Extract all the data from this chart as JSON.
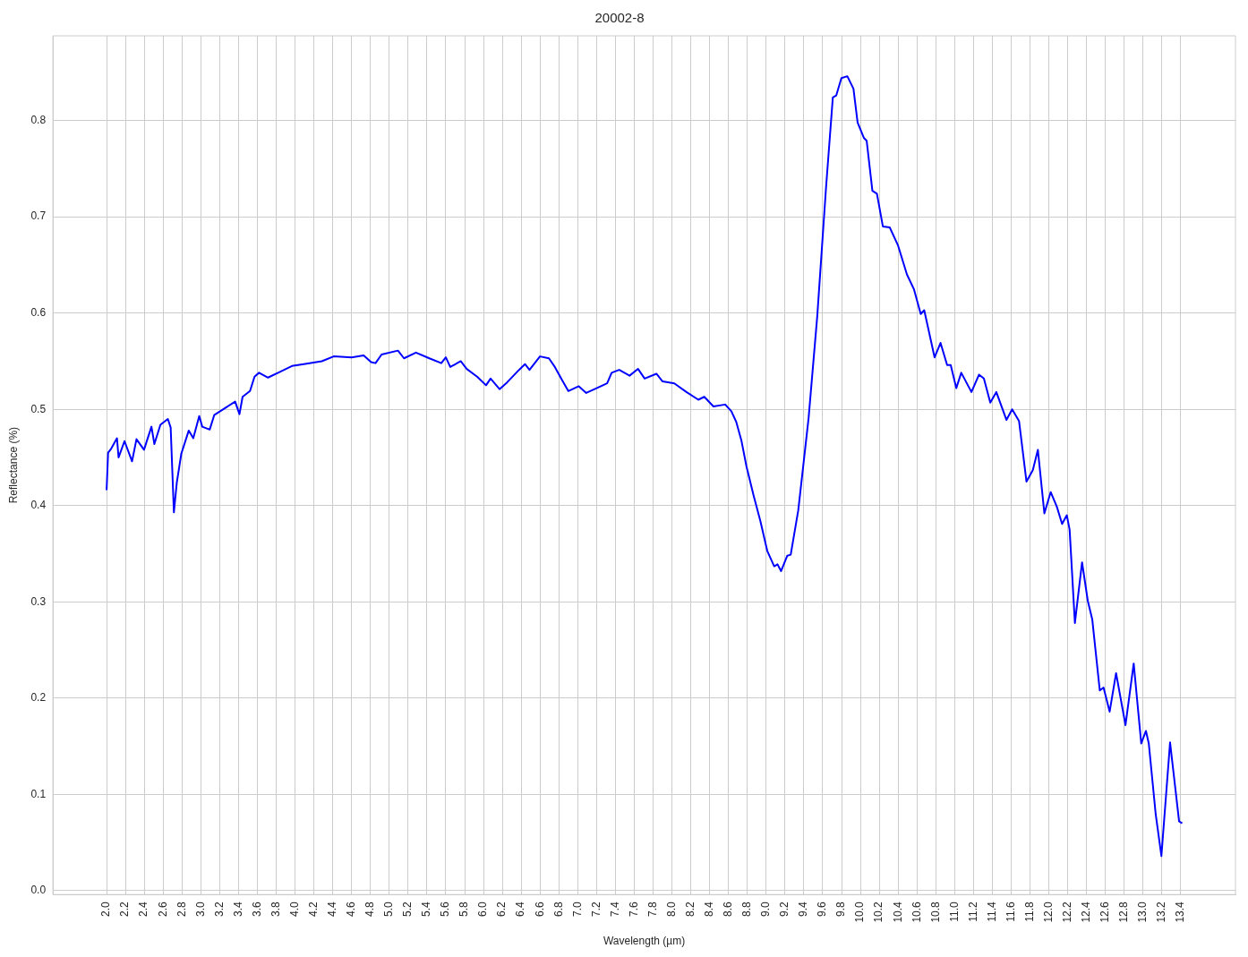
{
  "chart_data": {
    "type": "line",
    "title": "20002-8",
    "xlabel": "Wavelength (µm)",
    "ylabel": "Reflectance (%)",
    "grid": true,
    "marker": "none",
    "line_style": "solid",
    "xlim": [
      1.43,
      13.98
    ],
    "ylim": [
      -0.004,
      0.888
    ],
    "xticks": [
      {
        "value": 2,
        "label": "2.0"
      },
      {
        "value": 2.2,
        "label": "2.2"
      },
      {
        "value": 2.4,
        "label": "2.4"
      },
      {
        "value": 2.6,
        "label": "2.6"
      },
      {
        "value": 2.8,
        "label": "2.8"
      },
      {
        "value": 3,
        "label": "3.0"
      },
      {
        "value": 3.2,
        "label": "3.2"
      },
      {
        "value": 3.4,
        "label": "3.4"
      },
      {
        "value": 3.6,
        "label": "3.6"
      },
      {
        "value": 3.8,
        "label": "3.8"
      },
      {
        "value": 4,
        "label": "4.0"
      },
      {
        "value": 4.2,
        "label": "4.2"
      },
      {
        "value": 4.4,
        "label": "4.4"
      },
      {
        "value": 4.6,
        "label": "4.6"
      },
      {
        "value": 4.8,
        "label": "4.8"
      },
      {
        "value": 5,
        "label": "5.0"
      },
      {
        "value": 5.2,
        "label": "5.2"
      },
      {
        "value": 5.4,
        "label": "5.4"
      },
      {
        "value": 5.6,
        "label": "5.6"
      },
      {
        "value": 5.8,
        "label": "5.8"
      },
      {
        "value": 6,
        "label": "6.0"
      },
      {
        "value": 6.2,
        "label": "6.2"
      },
      {
        "value": 6.4,
        "label": "6.4"
      },
      {
        "value": 6.6,
        "label": "6.6"
      },
      {
        "value": 6.8,
        "label": "6.8"
      },
      {
        "value": 7,
        "label": "7.0"
      },
      {
        "value": 7.2,
        "label": "7.2"
      },
      {
        "value": 7.4,
        "label": "7.4"
      },
      {
        "value": 7.6,
        "label": "7.6"
      },
      {
        "value": 7.8,
        "label": "7.8"
      },
      {
        "value": 8,
        "label": "8.0"
      },
      {
        "value": 8.2,
        "label": "8.2"
      },
      {
        "value": 8.4,
        "label": "8.4"
      },
      {
        "value": 8.6,
        "label": "8.6"
      },
      {
        "value": 8.8,
        "label": "8.8"
      },
      {
        "value": 9,
        "label": "9.0"
      },
      {
        "value": 9.2,
        "label": "9.2"
      },
      {
        "value": 9.4,
        "label": "9.4"
      },
      {
        "value": 9.6,
        "label": "9.6"
      },
      {
        "value": 9.8,
        "label": "9.8"
      },
      {
        "value": 10,
        "label": "10.0"
      },
      {
        "value": 10.2,
        "label": "10.2"
      },
      {
        "value": 10.4,
        "label": "10.4"
      },
      {
        "value": 10.6,
        "label": "10.6"
      },
      {
        "value": 10.8,
        "label": "10.8"
      },
      {
        "value": 11,
        "label": "11.0"
      },
      {
        "value": 11.2,
        "label": "11.2"
      },
      {
        "value": 11.4,
        "label": "11.4"
      },
      {
        "value": 11.6,
        "label": "11.6"
      },
      {
        "value": 11.8,
        "label": "11.8"
      },
      {
        "value": 12,
        "label": "12.0"
      },
      {
        "value": 12.2,
        "label": "12.2"
      },
      {
        "value": 12.4,
        "label": "12.4"
      },
      {
        "value": 12.6,
        "label": "12.6"
      },
      {
        "value": 12.8,
        "label": "12.8"
      },
      {
        "value": 13,
        "label": "13.0"
      },
      {
        "value": 13.2,
        "label": "13.2"
      },
      {
        "value": 13.4,
        "label": "13.4"
      }
    ],
    "yticks": [
      {
        "value": 0,
        "label": "0.0"
      },
      0.1,
      0.2,
      0.3,
      0.4,
      0.5,
      0.6,
      0.7,
      0.8
    ],
    "series": [
      {
        "color": "#0000ff",
        "x": [
          2.0,
          2.016,
          2.048,
          2.11,
          2.127,
          2.19,
          2.27,
          2.317,
          2.397,
          2.476,
          2.507,
          2.571,
          2.65,
          2.68,
          2.714,
          2.745,
          2.793,
          2.872,
          2.92,
          2.983,
          3.015,
          3.094,
          3.142,
          3.268,
          3.364,
          3.41,
          3.443,
          3.522,
          3.57,
          3.618,
          3.713,
          3.84,
          3.967,
          4.093,
          4.284,
          4.41,
          4.6,
          4.728,
          4.807,
          4.854,
          4.918,
          5.092,
          5.156,
          5.283,
          5.425,
          5.552,
          5.6,
          5.647,
          5.758,
          5.822,
          5.932,
          6.027,
          6.075,
          6.17,
          6.25,
          6.377,
          6.44,
          6.488,
          6.599,
          6.694,
          6.757,
          6.836,
          6.9,
          7.011,
          7.09,
          7.2,
          7.312,
          7.36,
          7.44,
          7.55,
          7.64,
          7.71,
          7.835,
          7.9,
          8.025,
          8.153,
          8.28,
          8.343,
          8.44,
          8.565,
          8.63,
          8.682,
          8.736,
          8.79,
          8.865,
          8.938,
          9.011,
          9.085,
          9.12,
          9.158,
          9.224,
          9.26,
          9.34,
          9.45,
          9.542,
          9.634,
          9.707,
          9.743,
          9.798,
          9.861,
          9.926,
          9.97,
          10.036,
          10.066,
          10.127,
          10.175,
          10.238,
          10.311,
          10.4,
          10.494,
          10.567,
          10.64,
          10.677,
          10.787,
          10.85,
          10.92,
          10.958,
          11.017,
          11.07,
          11.178,
          11.258,
          11.31,
          11.378,
          11.442,
          11.55,
          11.61,
          11.683,
          11.762,
          11.83,
          11.883,
          11.952,
          12.019,
          12.084,
          12.14,
          12.19,
          12.22,
          12.276,
          12.352,
          12.413,
          12.46,
          12.54,
          12.58,
          12.645,
          12.713,
          12.813,
          12.9,
          12.98,
          13.03,
          13.06,
          13.134,
          13.194,
          13.286,
          13.382,
          13.415
        ],
        "values": [
          0.416,
          0.455,
          0.459,
          0.47,
          0.45,
          0.467,
          0.446,
          0.469,
          0.458,
          0.482,
          0.464,
          0.484,
          0.49,
          0.481,
          0.393,
          0.424,
          0.454,
          0.478,
          0.47,
          0.493,
          0.482,
          0.479,
          0.494,
          0.502,
          0.508,
          0.495,
          0.513,
          0.519,
          0.534,
          0.538,
          0.533,
          0.539,
          0.545,
          0.547,
          0.55,
          0.555,
          0.554,
          0.556,
          0.549,
          0.548,
          0.557,
          0.561,
          0.553,
          0.559,
          0.553,
          0.548,
          0.554,
          0.544,
          0.55,
          0.542,
          0.534,
          0.525,
          0.532,
          0.521,
          0.528,
          0.541,
          0.547,
          0.541,
          0.555,
          0.553,
          0.544,
          0.53,
          0.519,
          0.524,
          0.517,
          0.522,
          0.527,
          0.538,
          0.541,
          0.535,
          0.542,
          0.532,
          0.537,
          0.529,
          0.527,
          0.518,
          0.51,
          0.513,
          0.503,
          0.505,
          0.498,
          0.487,
          0.468,
          0.441,
          0.411,
          0.384,
          0.353,
          0.337,
          0.339,
          0.332,
          0.348,
          0.349,
          0.395,
          0.491,
          0.597,
          0.729,
          0.824,
          0.826,
          0.844,
          0.846,
          0.833,
          0.798,
          0.782,
          0.779,
          0.727,
          0.724,
          0.69,
          0.689,
          0.67,
          0.64,
          0.625,
          0.599,
          0.603,
          0.554,
          0.569,
          0.546,
          0.546,
          0.522,
          0.538,
          0.518,
          0.536,
          0.532,
          0.507,
          0.518,
          0.489,
          0.5,
          0.488,
          0.425,
          0.437,
          0.458,
          0.392,
          0.414,
          0.399,
          0.381,
          0.39,
          0.375,
          0.278,
          0.341,
          0.301,
          0.282,
          0.208,
          0.211,
          0.186,
          0.226,
          0.172,
          0.236,
          0.153,
          0.166,
          0.153,
          0.079,
          0.036,
          0.154,
          0.072,
          0.07
        ]
      }
    ]
  }
}
